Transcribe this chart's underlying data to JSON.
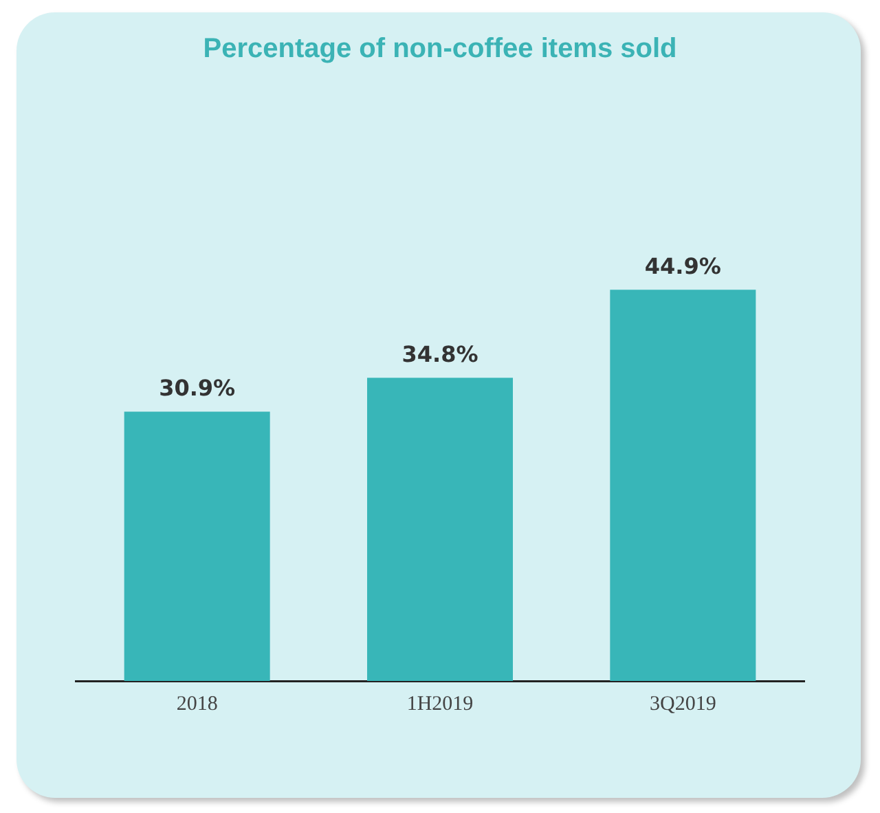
{
  "chart_data": {
    "type": "bar",
    "title": "Percentage of non-coffee items sold",
    "categories": [
      "2018",
      "1H2019",
      "3Q2019"
    ],
    "values": [
      30.9,
      34.8,
      44.9
    ],
    "value_labels": [
      "30.9%",
      "34.8%",
      "44.9%"
    ],
    "color": "#38b6b8",
    "grid": false,
    "legend": false
  }
}
